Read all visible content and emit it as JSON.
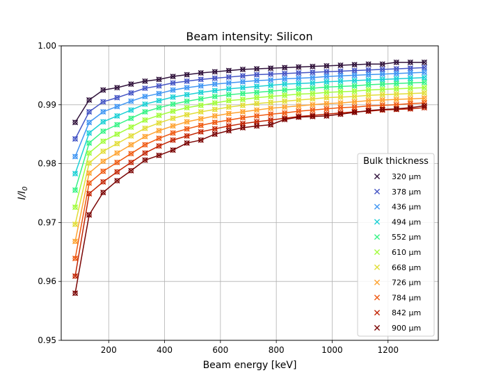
{
  "chart_data": {
    "type": "line",
    "title": "Beam intensity: Silicon",
    "xlabel": "Beam energy [keV]",
    "ylabel": "I/I0",
    "xlim": [
      30,
      1380
    ],
    "ylim": [
      0.95,
      1.0
    ],
    "x_ticks": [
      200,
      400,
      600,
      800,
      1000,
      1200
    ],
    "x_tick_labels": [
      "200",
      "400",
      "600",
      "800",
      "1000",
      "1200"
    ],
    "y_ticks": [
      0.95,
      0.96,
      0.97,
      0.98,
      0.99,
      1.0
    ],
    "y_tick_labels": [
      "0.95",
      "0.96",
      "0.97",
      "0.98",
      "0.99",
      "1.00"
    ],
    "grid": true,
    "legend_title": "Bulk thickness",
    "legend_position": "right",
    "x": [
      80,
      130,
      180,
      230,
      280,
      330,
      380,
      430,
      480,
      530,
      580,
      630,
      680,
      730,
      780,
      830,
      880,
      930,
      980,
      1030,
      1080,
      1130,
      1180,
      1230,
      1280,
      1330
    ],
    "series": [
      {
        "name": "320 μm",
        "color": "#30123b",
        "values": [
          0.987,
          0.9908,
          0.9925,
          0.9929,
          0.9935,
          0.994,
          0.9943,
          0.9948,
          0.9951,
          0.9954,
          0.9956,
          0.9958,
          0.996,
          0.9961,
          0.9962,
          0.9963,
          0.9964,
          0.9965,
          0.9966,
          0.9967,
          0.9968,
          0.9969,
          0.9969,
          0.9972,
          0.9972,
          0.9972
        ]
      },
      {
        "name": "378 μm",
        "color": "#4454c4",
        "values": [
          0.9842,
          0.9888,
          0.9905,
          0.9912,
          0.992,
          0.9928,
          0.9932,
          0.9937,
          0.994,
          0.9943,
          0.9945,
          0.9947,
          0.9949,
          0.9951,
          0.9952,
          0.9953,
          0.9954,
          0.9955,
          0.9956,
          0.9957,
          0.9958,
          0.9959,
          0.996,
          0.9961,
          0.9962,
          0.9963
        ]
      },
      {
        "name": "436 μm",
        "color": "#4096f3",
        "values": [
          0.9812,
          0.987,
          0.9888,
          0.9897,
          0.9906,
          0.9914,
          0.9919,
          0.9925,
          0.9929,
          0.9932,
          0.9935,
          0.9937,
          0.9939,
          0.9941,
          0.9942,
          0.9944,
          0.9945,
          0.9946,
          0.9948,
          0.9949,
          0.995,
          0.9951,
          0.9952,
          0.9953,
          0.9954,
          0.9955
        ]
      },
      {
        "name": "494 μm",
        "color": "#1bd0d5",
        "values": [
          0.9783,
          0.9852,
          0.9871,
          0.9881,
          0.9891,
          0.9901,
          0.9907,
          0.9913,
          0.9917,
          0.9921,
          0.9924,
          0.9927,
          0.9929,
          0.9931,
          0.9933,
          0.9935,
          0.9936,
          0.9937,
          0.9939,
          0.994,
          0.9941,
          0.9942,
          0.9943,
          0.9944,
          0.9945,
          0.9946
        ]
      },
      {
        "name": "552 μm",
        "color": "#35f385",
        "values": [
          0.9755,
          0.9835,
          0.9855,
          0.9866,
          0.9877,
          0.9888,
          0.9895,
          0.9901,
          0.9906,
          0.991,
          0.9914,
          0.9917,
          0.9919,
          0.9921,
          0.9923,
          0.9925,
          0.9927,
          0.9928,
          0.993,
          0.9931,
          0.9932,
          0.9934,
          0.9935,
          0.9936,
          0.9937,
          0.9938
        ]
      },
      {
        "name": "610 μm",
        "color": "#a2fc3c",
        "values": [
          0.9726,
          0.9818,
          0.9838,
          0.985,
          0.9862,
          0.9874,
          0.9882,
          0.9889,
          0.9895,
          0.9899,
          0.9903,
          0.9907,
          0.9909,
          0.9912,
          0.9914,
          0.9916,
          0.9918,
          0.9919,
          0.9921,
          0.9922,
          0.9923,
          0.9925,
          0.9926,
          0.9927,
          0.9928,
          0.9929
        ]
      },
      {
        "name": "668 μm",
        "color": "#e1dd37",
        "values": [
          0.9697,
          0.9801,
          0.9821,
          0.9834,
          0.9847,
          0.986,
          0.9869,
          0.9877,
          0.9883,
          0.9888,
          0.9892,
          0.9896,
          0.9899,
          0.9902,
          0.9904,
          0.9906,
          0.9908,
          0.991,
          0.9912,
          0.9913,
          0.9914,
          0.9916,
          0.9917,
          0.9918,
          0.9919,
          0.992
        ]
      },
      {
        "name": "726 μm",
        "color": "#fea331",
        "values": [
          0.9668,
          0.9784,
          0.9804,
          0.9818,
          0.9832,
          0.9846,
          0.9856,
          0.9864,
          0.9871,
          0.9876,
          0.9881,
          0.9885,
          0.9888,
          0.9891,
          0.9894,
          0.9896,
          0.9898,
          0.99,
          0.9902,
          0.9903,
          0.9905,
          0.9907,
          0.9908,
          0.9909,
          0.991,
          0.9911
        ]
      },
      {
        "name": "784 μm",
        "color": "#ef5911",
        "values": [
          0.9639,
          0.9767,
          0.9787,
          0.9802,
          0.9817,
          0.9832,
          0.9843,
          0.9852,
          0.9859,
          0.9865,
          0.987,
          0.9874,
          0.9878,
          0.9881,
          0.9884,
          0.9886,
          0.9889,
          0.9891,
          0.9893,
          0.9895,
          0.9896,
          0.9898,
          0.9899,
          0.99,
          0.9902,
          0.9903
        ]
      },
      {
        "name": "842 μm",
        "color": "#c22402",
        "values": [
          0.9609,
          0.9749,
          0.9769,
          0.9786,
          0.9802,
          0.9818,
          0.983,
          0.984,
          0.9847,
          0.9854,
          0.9859,
          0.9864,
          0.9868,
          0.9871,
          0.9874,
          0.9877,
          0.988,
          0.9882,
          0.9884,
          0.9886,
          0.9888,
          0.9889,
          0.9891,
          0.9892,
          0.9893,
          0.9895
        ]
      },
      {
        "name": "900 μm",
        "color": "#7a0403",
        "values": [
          0.958,
          0.9713,
          0.9751,
          0.9771,
          0.9788,
          0.9806,
          0.9814,
          0.9823,
          0.9835,
          0.984,
          0.985,
          0.9856,
          0.9861,
          0.9864,
          0.9866,
          0.9875,
          0.9879,
          0.988,
          0.9881,
          0.9884,
          0.9887,
          0.989,
          0.9892,
          0.9893,
          0.9895,
          0.9898
        ]
      }
    ]
  }
}
